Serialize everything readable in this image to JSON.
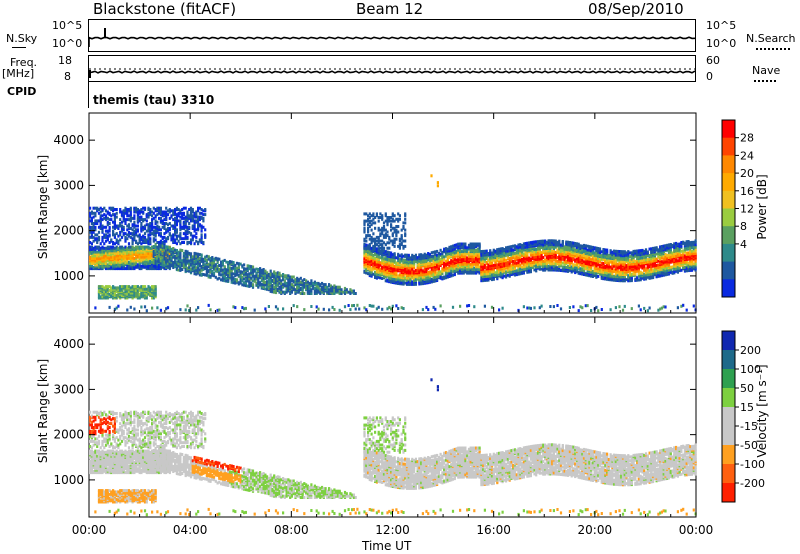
{
  "header": {
    "radar": "Blackstone (fitACF)",
    "beam": "Beam 12",
    "date": "08/Sep/2010"
  },
  "top_panels": {
    "nsky_label": "N.Sky",
    "nsky_ticks": [
      "10^5",
      "10^0"
    ],
    "nsearch_label": "N.Search",
    "nsearch_ticks": [
      "10^5",
      "10^0"
    ],
    "freq_label": "Freq.",
    "freq_unit": "[MHz]",
    "freq_ticks": [
      "18",
      "8"
    ],
    "nave_label": "Nave",
    "nave_ticks": [
      "60",
      "0"
    ],
    "cpid_label": "CPID",
    "cpid_value": "themis (tau) 3310"
  },
  "panels": {
    "ylabel": "Slant Range [km]",
    "yticks": [
      "4000",
      "3000",
      "2000",
      "1000"
    ],
    "xlabel": "Time UT",
    "xticks": [
      "00:00",
      "04:00",
      "08:00",
      "12:00",
      "16:00",
      "20:00",
      "00:00"
    ]
  },
  "power_scale": {
    "label": "Power [dB]",
    "ticks": [
      "28",
      "24",
      "20",
      "16",
      "12",
      "8",
      "4"
    ],
    "colors": [
      "#ff0000",
      "#ff4400",
      "#ff8800",
      "#ffaa00",
      "#f0c020",
      "#9acc40",
      "#5aa060",
      "#2e8a8a",
      "#1e58a0",
      "#0a2ae0"
    ]
  },
  "velocity_scale": {
    "label": "Velocity [m s⁻¹]",
    "ticks": [
      "200",
      "100",
      "50",
      "15",
      "-15",
      "-50",
      "-100",
      "-200"
    ],
    "colors": [
      "#1028b0",
      "#1e6a8a",
      "#2ea050",
      "#7dd040",
      "#c8c8c8",
      "#c8c8c8",
      "#ffa020",
      "#ff6010",
      "#ff2000"
    ]
  },
  "chart_data": [
    {
      "type": "heatmap",
      "title": "Power",
      "xlabel": "Time UT",
      "ylabel": "Slant Range [km]",
      "xlim": [
        0,
        24
      ],
      "ylim": [
        180,
        4600
      ],
      "colorbar": "Power [dB]",
      "colorbar_range": [
        0,
        32
      ],
      "bands": [
        {
          "t0": 0.0,
          "t1": 3.0,
          "r0": 1150,
          "r1": 1600,
          "dominant": "orange/green"
        },
        {
          "t0": 0.3,
          "t1": 2.6,
          "r0": 500,
          "r1": 780,
          "dominant": "green"
        },
        {
          "t0": 0.0,
          "t1": 4.5,
          "r0": 1700,
          "r1": 2500,
          "dominant": "blue"
        },
        {
          "t0": 2.5,
          "t1": 10.5,
          "r0": 600,
          "r1": 1700,
          "dominant": "blue/green"
        },
        {
          "t0": 10.8,
          "t1": 24.0,
          "r0": 1000,
          "r1": 2400,
          "dominant": "orange/red"
        }
      ]
    },
    {
      "type": "heatmap",
      "title": "Velocity",
      "xlabel": "Time UT",
      "ylabel": "Slant Range [km]",
      "xlim": [
        0,
        24
      ],
      "ylim": [
        180,
        4600
      ],
      "colorbar": "Velocity [m s⁻¹]",
      "colorbar_range": [
        -200,
        200
      ],
      "bands": [
        {
          "t0": 0.0,
          "t1": 4.5,
          "r0": 1150,
          "r1": 2500,
          "dominant": "grey"
        },
        {
          "t0": 0.3,
          "t1": 2.6,
          "r0": 500,
          "r1": 780,
          "dominant": "orange"
        },
        {
          "t0": 0.3,
          "t1": 1.0,
          "r0": 2000,
          "r1": 2400,
          "dominant": "red"
        },
        {
          "t0": 4.0,
          "t1": 6.0,
          "r0": 1750,
          "r1": 1900,
          "dominant": "red"
        },
        {
          "t0": 4.0,
          "t1": 6.0,
          "r0": 1300,
          "r1": 1550,
          "dominant": "orange"
        },
        {
          "t0": 5.5,
          "t1": 10.5,
          "r0": 600,
          "r1": 1500,
          "dominant": "green/grey"
        },
        {
          "t0": 10.8,
          "t1": 24.0,
          "r0": 1000,
          "r1": 2400,
          "dominant": "grey"
        }
      ]
    }
  ]
}
